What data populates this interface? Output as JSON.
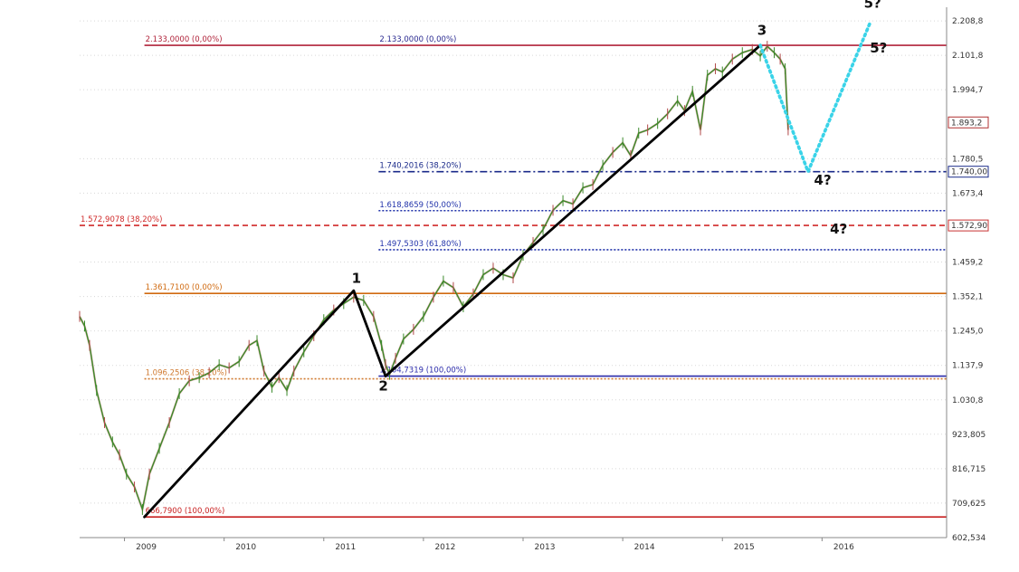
{
  "chart_data": {
    "type": "line",
    "title": "",
    "xlabel": "",
    "ylabel": "",
    "x_range": [
      2008.55,
      2017.25
    ],
    "y_range": [
      602.534,
      2240
    ],
    "grid": "dotted horizontal",
    "x_ticks": [
      "2009",
      "2010",
      "2011",
      "2012",
      "2013",
      "2014",
      "2015",
      "2016"
    ],
    "y_ticks": [
      "2.208,8",
      "2.101,8",
      "1.994,7",
      "1.780,5",
      "1.673,4",
      "1.459,2",
      "1.352,1",
      "1.245,0",
      "1.137,9",
      "1.030,8",
      "923,805",
      "816,715",
      "709,625",
      "602,534"
    ],
    "y_tick_values": [
      2208.8,
      2101.8,
      1994.7,
      1780.5,
      1673.4,
      1459.2,
      1352.1,
      1245.0,
      1137.9,
      1030.8,
      923.805,
      816.715,
      709.625,
      602.534
    ],
    "price_tags": [
      {
        "label": "1.893,2",
        "value": 1893.2,
        "color": "#b03030"
      },
      {
        "label": "1.740,00",
        "value": 1740.0,
        "color": "#1a2a8a"
      },
      {
        "label": "1.572,90",
        "value": 1572.9,
        "color": "#c83030"
      }
    ],
    "fib_levels": [
      {
        "label": "2.133,0000  (0,00%)",
        "value": 2133.0,
        "x_start": 2009.2,
        "x_end": 2017.25,
        "color": "#b0233a",
        "style": "solid"
      },
      {
        "label": "2.133,0000  (0,00%)",
        "value": 2133.0,
        "x_start": 2011.55,
        "x_end": 2017.25,
        "color": "#2a2a90",
        "style": "none"
      },
      {
        "label": "1.740,2016  (38,20%)",
        "value": 1740.2,
        "x_start": 2011.55,
        "x_end": 2017.25,
        "color": "#1a2a8a",
        "style": "dashdot"
      },
      {
        "label": "1.618,8659  (50,00%)",
        "value": 1618.9,
        "x_start": 2011.55,
        "x_end": 2017.25,
        "color": "#2233aa",
        "style": "dotted"
      },
      {
        "label": "1.572,9078  (38,20%)",
        "value": 1572.9,
        "x_start": 2008.55,
        "x_end": 2017.25,
        "color": "#d02a2a",
        "style": "dashed"
      },
      {
        "label": "1.497,5303  (61,80%)",
        "value": 1497.5,
        "x_start": 2011.55,
        "x_end": 2017.25,
        "color": "#2233aa",
        "style": "dotted"
      },
      {
        "label": "1.361,7100  (0,00%)",
        "value": 1361.7,
        "x_start": 2009.2,
        "x_end": 2017.25,
        "color": "#d06a10",
        "style": "solid"
      },
      {
        "label": "1.096,2506  (38,20%)",
        "value": 1096.25,
        "x_start": 2009.2,
        "x_end": 2017.25,
        "color": "#d07a30",
        "style": "dotted"
      },
      {
        "label": "1.104,7319  (100,00%)",
        "value": 1104.7,
        "x_start": 2011.55,
        "x_end": 2017.25,
        "color": "#2a2aaa",
        "style": "solid"
      },
      {
        "label": "666,7900  (100,00%)",
        "value": 666.79,
        "x_start": 2009.2,
        "x_end": 2017.25,
        "color": "#c82020",
        "style": "solid"
      }
    ],
    "series": [
      {
        "values_note": "",
        "x": [
          2008.55,
          2008.6,
          2008.65,
          2008.72,
          2008.8,
          2008.88,
          2008.95,
          2009.02,
          2009.1,
          2009.18,
          2009.25,
          2009.35,
          2009.45,
          2009.55,
          2009.65,
          2009.75,
          2009.85,
          2009.95,
          2010.05,
          2010.15,
          2010.25,
          2010.33,
          2010.4,
          2010.48,
          2010.55,
          2010.63,
          2010.7,
          2010.8,
          2010.9,
          2011.0,
          2011.1,
          2011.2,
          2011.3,
          2011.4,
          2011.5,
          2011.58,
          2011.62,
          2011.66,
          2011.72,
          2011.8,
          2011.9,
          2012.0,
          2012.1,
          2012.2,
          2012.3,
          2012.4,
          2012.5,
          2012.6,
          2012.7,
          2012.8,
          2012.9,
          2013.0,
          2013.1,
          2013.2,
          2013.3,
          2013.4,
          2013.5,
          2013.6,
          2013.7,
          2013.8,
          2013.9,
          2014.0,
          2014.08,
          2014.16,
          2014.25,
          2014.35,
          2014.45,
          2014.55,
          2014.62,
          2014.7,
          2014.78,
          2014.85,
          2014.93,
          2015.0,
          2015.1,
          2015.2,
          2015.3,
          2015.38,
          2015.45,
          2015.52,
          2015.58,
          2015.63,
          2015.66
        ],
        "values": [
          1290,
          1260,
          1200,
          1060,
          960,
          900,
          860,
          800,
          760,
          690,
          800,
          880,
          960,
          1050,
          1090,
          1100,
          1115,
          1140,
          1130,
          1150,
          1200,
          1215,
          1120,
          1070,
          1100,
          1060,
          1120,
          1180,
          1230,
          1280,
          1310,
          1330,
          1350,
          1340,
          1290,
          1200,
          1140,
          1110,
          1160,
          1220,
          1250,
          1290,
          1350,
          1400,
          1380,
          1320,
          1360,
          1420,
          1440,
          1420,
          1410,
          1480,
          1520,
          1560,
          1620,
          1650,
          1640,
          1690,
          1700,
          1760,
          1800,
          1830,
          1790,
          1860,
          1870,
          1890,
          1920,
          1960,
          1930,
          1990,
          1870,
          2040,
          2060,
          2050,
          2090,
          2110,
          2120,
          2100,
          2130,
          2110,
          2090,
          2060,
          1870
        ]
      }
    ],
    "wave_lines": [
      {
        "from": [
          2009.2,
          666.79
        ],
        "to": [
          2011.3,
          1370.0
        ]
      },
      {
        "from": [
          2011.3,
          1370.0
        ],
        "to": [
          2011.62,
          1104.7
        ]
      },
      {
        "from": [
          2011.62,
          1104.7
        ],
        "to": [
          2015.38,
          2133.0
        ]
      }
    ],
    "projection_lines": [
      {
        "points": [
          [
            2015.38,
            2133.0
          ],
          [
            2015.86,
            1740.0
          ],
          [
            2016.49,
            2208.8
          ]
        ],
        "color": "#3ad3e8"
      }
    ],
    "wave_labels": [
      {
        "text": "1",
        "x": 2011.28,
        "y": 1395
      },
      {
        "text": "2",
        "x": 2011.55,
        "y": 1060
      },
      {
        "text": "3",
        "x": 2015.35,
        "y": 2165
      },
      {
        "text": "4?",
        "x": 2015.92,
        "y": 1700
      },
      {
        "text": "4?",
        "x": 2016.08,
        "y": 1548
      },
      {
        "text": "5?",
        "x": 2016.42,
        "y": 2250
      },
      {
        "text": "5?",
        "x": 2016.48,
        "y": 2110
      }
    ]
  }
}
